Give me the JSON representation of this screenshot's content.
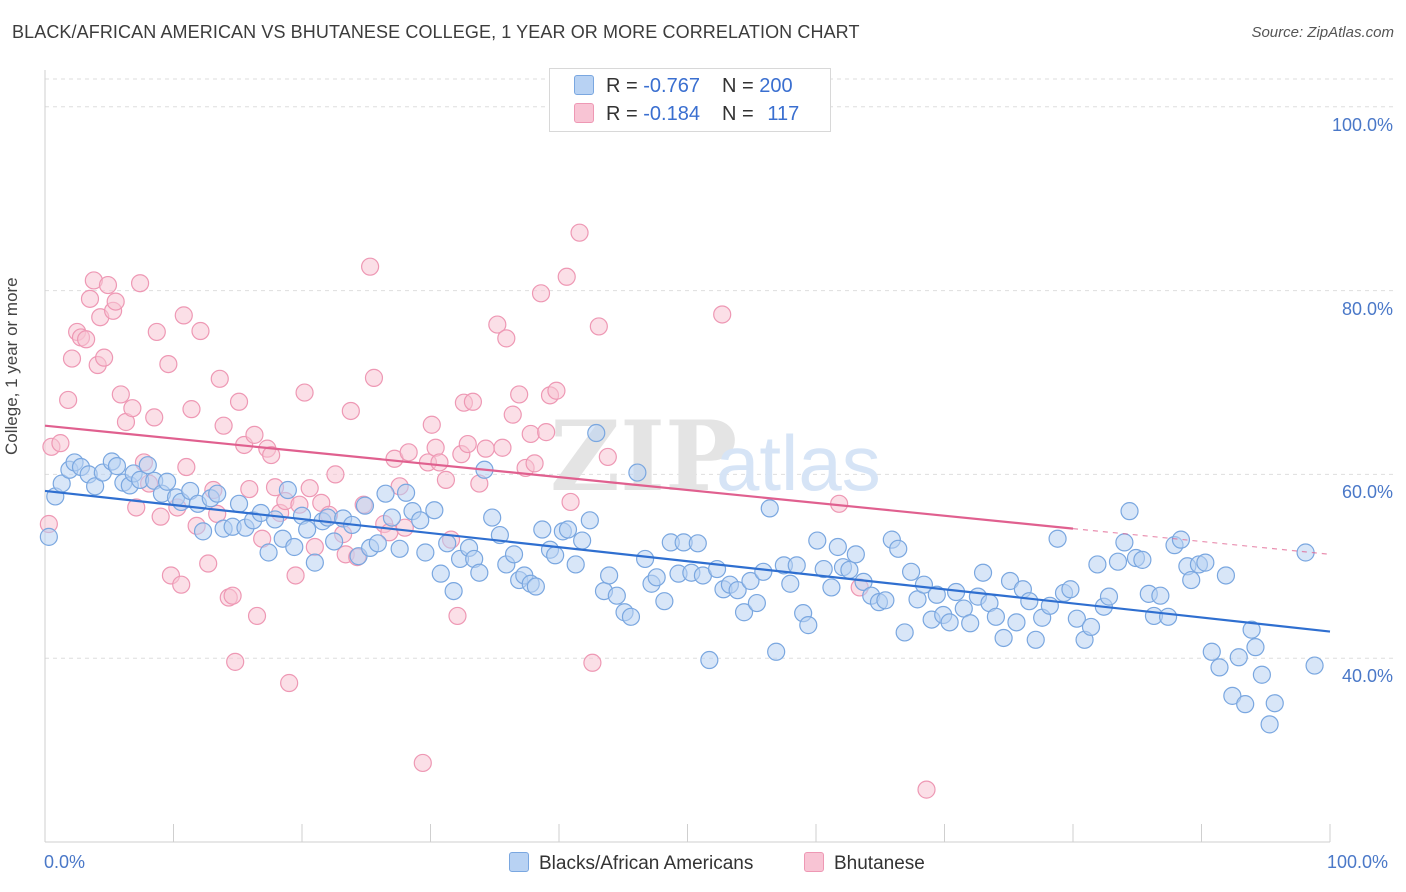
{
  "title": "BLACK/AFRICAN AMERICAN VS BHUTANESE COLLEGE, 1 YEAR OR MORE CORRELATION CHART",
  "source": "Source: ZipAtlas.com",
  "watermark": {
    "zip": "ZIP",
    "atlas": "atlas"
  },
  "legend_top": {
    "rows": [
      {
        "r_label": "R = ",
        "r_value": "-0.767",
        "n_label": "N = ",
        "n_value": "200",
        "color": "#8fb6ea"
      },
      {
        "r_label": "R = ",
        "r_value": "-0.184",
        "n_label": "N = ",
        "n_value": "117",
        "color": "#f4a6bf"
      }
    ]
  },
  "colors": {
    "blue_fill": "#b8d2f3",
    "blue_stroke": "#7aa7e0",
    "blue_line": "#2f6fd0",
    "pink_fill": "#f8c4d4",
    "pink_stroke": "#ee98b4",
    "pink_line": "#e0608f",
    "grid": "#dedede",
    "tick_text": "#4a78c8"
  },
  "chart_data": {
    "type": "scatter",
    "title": "BLACK/AFRICAN AMERICAN VS BHUTANESE COLLEGE, 1 YEAR OR MORE CORRELATION CHART",
    "xlabel": "",
    "ylabel": "College, 1 year or more",
    "xlim": [
      0,
      100
    ],
    "ylim": [
      20,
      104
    ],
    "x_tick_labels": [
      "0.0%",
      "100.0%"
    ],
    "y_ticks": [
      40,
      60,
      80,
      100
    ],
    "y_tick_labels": [
      "40.0%",
      "60.0%",
      "80.0%",
      "100.0%"
    ],
    "grid": true,
    "legend": "top-center",
    "series": [
      {
        "name": "Blacks/African Americans",
        "r": -0.767,
        "n": 200,
        "trend": {
          "x0": 0,
          "y0": 58.2,
          "x1": 100,
          "y1": 42.9
        },
        "points": [
          [
            0.3,
            53.2
          ],
          [
            0.8,
            57.6
          ],
          [
            1.3,
            59.0
          ],
          [
            1.9,
            60.5
          ],
          [
            2.3,
            61.3
          ],
          [
            2.8,
            60.8
          ],
          [
            3.4,
            60.0
          ],
          [
            3.9,
            58.7
          ],
          [
            4.5,
            60.2
          ],
          [
            5.2,
            61.4
          ],
          [
            5.6,
            60.9
          ],
          [
            6.1,
            59.1
          ],
          [
            6.6,
            58.8
          ],
          [
            6.9,
            60.1
          ],
          [
            7.4,
            59.4
          ],
          [
            8.0,
            61.0
          ],
          [
            8.5,
            59.3
          ],
          [
            9.1,
            57.9
          ],
          [
            9.5,
            59.2
          ],
          [
            10.2,
            57.5
          ],
          [
            10.6,
            57.0
          ],
          [
            11.3,
            58.2
          ],
          [
            11.9,
            56.8
          ],
          [
            12.3,
            53.8
          ],
          [
            12.9,
            57.4
          ],
          [
            13.4,
            57.9
          ],
          [
            13.9,
            54.1
          ],
          [
            14.6,
            54.3
          ],
          [
            15.1,
            56.8
          ],
          [
            15.6,
            54.2
          ],
          [
            16.2,
            55.0
          ],
          [
            16.8,
            55.8
          ],
          [
            17.4,
            51.5
          ],
          [
            17.9,
            55.1
          ],
          [
            18.5,
            53.0
          ],
          [
            18.9,
            58.3
          ],
          [
            19.4,
            52.1
          ],
          [
            20.0,
            55.5
          ],
          [
            20.4,
            54.0
          ],
          [
            21.0,
            50.4
          ],
          [
            21.6,
            54.9
          ],
          [
            22.0,
            55.3
          ],
          [
            22.5,
            52.7
          ],
          [
            23.2,
            55.2
          ],
          [
            23.9,
            54.5
          ],
          [
            24.4,
            51.1
          ],
          [
            24.9,
            56.6
          ],
          [
            25.3,
            52.0
          ],
          [
            25.9,
            52.5
          ],
          [
            26.5,
            57.9
          ],
          [
            27.0,
            55.3
          ],
          [
            27.6,
            51.9
          ],
          [
            28.1,
            58.0
          ],
          [
            28.6,
            56.0
          ],
          [
            29.2,
            55.0
          ],
          [
            29.6,
            51.5
          ],
          [
            30.3,
            56.1
          ],
          [
            30.8,
            49.2
          ],
          [
            31.3,
            52.5
          ],
          [
            31.8,
            47.3
          ],
          [
            32.3,
            50.8
          ],
          [
            33.0,
            52.0
          ],
          [
            33.4,
            50.8
          ],
          [
            33.8,
            49.3
          ],
          [
            34.2,
            60.5
          ],
          [
            34.8,
            55.3
          ],
          [
            35.4,
            53.4
          ],
          [
            35.9,
            50.2
          ],
          [
            36.5,
            51.3
          ],
          [
            36.9,
            48.5
          ],
          [
            37.3,
            49.0
          ],
          [
            37.8,
            48.1
          ],
          [
            38.2,
            47.8
          ],
          [
            38.7,
            54.0
          ],
          [
            39.3,
            51.8
          ],
          [
            39.7,
            51.2
          ],
          [
            40.3,
            53.8
          ],
          [
            40.7,
            54.0
          ],
          [
            41.3,
            50.2
          ],
          [
            41.8,
            52.8
          ],
          [
            42.4,
            55.0
          ],
          [
            42.9,
            64.5
          ],
          [
            43.5,
            47.3
          ],
          [
            43.9,
            49.0
          ],
          [
            44.5,
            46.8
          ],
          [
            45.1,
            45.0
          ],
          [
            45.6,
            44.5
          ],
          [
            46.1,
            60.2
          ],
          [
            46.7,
            50.8
          ],
          [
            47.2,
            48.1
          ],
          [
            47.6,
            48.8
          ],
          [
            48.2,
            46.2
          ],
          [
            48.7,
            52.6
          ],
          [
            49.3,
            49.2
          ],
          [
            49.7,
            52.6
          ],
          [
            50.3,
            49.3
          ],
          [
            50.8,
            52.5
          ],
          [
            51.2,
            49.0
          ],
          [
            51.7,
            39.8
          ],
          [
            52.3,
            49.7
          ],
          [
            52.8,
            47.5
          ],
          [
            53.3,
            48.0
          ],
          [
            53.9,
            47.4
          ],
          [
            54.4,
            45.0
          ],
          [
            54.9,
            48.4
          ],
          [
            55.4,
            46.0
          ],
          [
            55.9,
            49.4
          ],
          [
            56.4,
            56.3
          ],
          [
            56.9,
            40.7
          ],
          [
            57.5,
            50.1
          ],
          [
            58.0,
            48.1
          ],
          [
            58.5,
            50.1
          ],
          [
            59.0,
            44.9
          ],
          [
            59.4,
            43.6
          ],
          [
            60.1,
            52.8
          ],
          [
            60.6,
            49.7
          ],
          [
            61.2,
            47.7
          ],
          [
            61.7,
            52.1
          ],
          [
            62.1,
            49.9
          ],
          [
            62.6,
            49.6
          ],
          [
            63.1,
            51.3
          ],
          [
            63.7,
            48.3
          ],
          [
            64.3,
            46.8
          ],
          [
            64.9,
            46.1
          ],
          [
            65.4,
            46.3
          ],
          [
            65.9,
            52.9
          ],
          [
            66.4,
            51.9
          ],
          [
            66.9,
            42.8
          ],
          [
            67.4,
            49.4
          ],
          [
            67.9,
            46.4
          ],
          [
            68.4,
            48.0
          ],
          [
            69.0,
            44.2
          ],
          [
            69.4,
            46.9
          ],
          [
            69.9,
            44.7
          ],
          [
            70.4,
            43.9
          ],
          [
            70.9,
            47.2
          ],
          [
            71.5,
            45.4
          ],
          [
            72.0,
            43.8
          ],
          [
            72.6,
            46.7
          ],
          [
            73.0,
            49.3
          ],
          [
            73.5,
            46.0
          ],
          [
            74.0,
            44.5
          ],
          [
            74.6,
            42.2
          ],
          [
            75.1,
            48.4
          ],
          [
            75.6,
            43.9
          ],
          [
            76.1,
            47.5
          ],
          [
            76.6,
            46.2
          ],
          [
            77.1,
            42.0
          ],
          [
            77.6,
            44.4
          ],
          [
            78.2,
            45.7
          ],
          [
            78.8,
            53.0
          ],
          [
            79.3,
            47.1
          ],
          [
            79.8,
            47.5
          ],
          [
            80.3,
            44.3
          ],
          [
            80.9,
            42.0
          ],
          [
            81.4,
            43.4
          ],
          [
            81.9,
            50.2
          ],
          [
            82.4,
            45.6
          ],
          [
            82.8,
            46.7
          ],
          [
            83.5,
            50.5
          ],
          [
            84.0,
            52.6
          ],
          [
            84.4,
            56.0
          ],
          [
            84.9,
            50.9
          ],
          [
            85.4,
            50.7
          ],
          [
            85.9,
            47.0
          ],
          [
            86.3,
            44.6
          ],
          [
            86.8,
            46.8
          ],
          [
            87.4,
            44.5
          ],
          [
            87.9,
            52.3
          ],
          [
            88.4,
            52.9
          ],
          [
            88.9,
            50.0
          ],
          [
            89.2,
            48.5
          ],
          [
            89.8,
            50.2
          ],
          [
            90.3,
            50.4
          ],
          [
            90.8,
            40.7
          ],
          [
            91.4,
            39.0
          ],
          [
            91.9,
            49.0
          ],
          [
            92.4,
            35.9
          ],
          [
            92.9,
            40.1
          ],
          [
            93.4,
            35.0
          ],
          [
            93.9,
            43.1
          ],
          [
            94.2,
            41.2
          ],
          [
            94.7,
            38.2
          ],
          [
            95.3,
            32.8
          ],
          [
            95.7,
            35.1
          ],
          [
            98.1,
            51.5
          ],
          [
            98.8,
            39.2
          ]
        ]
      },
      {
        "name": "Bhutanese",
        "r": -0.184,
        "n": 117,
        "trend": {
          "x0": 0,
          "y0": 65.3,
          "x1": 80,
          "y1": 54.1
        },
        "trend_dashed": {
          "x0": 80,
          "y0": 54.1,
          "x1": 100,
          "y1": 51.3
        },
        "points": [
          [
            0.3,
            54.6
          ],
          [
            0.5,
            63.0
          ],
          [
            1.2,
            63.4
          ],
          [
            1.8,
            68.1
          ],
          [
            2.1,
            72.6
          ],
          [
            2.5,
            75.5
          ],
          [
            2.8,
            74.9
          ],
          [
            3.2,
            74.7
          ],
          [
            3.5,
            79.1
          ],
          [
            3.8,
            81.1
          ],
          [
            4.1,
            71.9
          ],
          [
            4.3,
            77.1
          ],
          [
            4.6,
            72.7
          ],
          [
            4.9,
            80.6
          ],
          [
            5.3,
            77.8
          ],
          [
            5.5,
            78.8
          ],
          [
            5.9,
            68.7
          ],
          [
            6.3,
            65.7
          ],
          [
            6.8,
            67.2
          ],
          [
            7.1,
            56.4
          ],
          [
            7.4,
            80.8
          ],
          [
            7.7,
            61.3
          ],
          [
            8.1,
            59.0
          ],
          [
            8.5,
            66.2
          ],
          [
            8.7,
            75.5
          ],
          [
            9.0,
            55.4
          ],
          [
            9.6,
            72.0
          ],
          [
            9.8,
            49.0
          ],
          [
            10.3,
            56.4
          ],
          [
            10.6,
            48.0
          ],
          [
            10.8,
            77.3
          ],
          [
            11.0,
            60.8
          ],
          [
            11.4,
            67.1
          ],
          [
            11.8,
            54.4
          ],
          [
            12.1,
            75.6
          ],
          [
            12.7,
            50.3
          ],
          [
            13.1,
            58.3
          ],
          [
            13.4,
            55.7
          ],
          [
            13.6,
            70.4
          ],
          [
            13.9,
            65.3
          ],
          [
            14.3,
            46.6
          ],
          [
            14.6,
            46.8
          ],
          [
            14.8,
            39.6
          ],
          [
            15.1,
            67.9
          ],
          [
            15.5,
            63.2
          ],
          [
            15.9,
            58.4
          ],
          [
            16.3,
            64.3
          ],
          [
            16.5,
            44.6
          ],
          [
            16.9,
            53.0
          ],
          [
            17.3,
            62.8
          ],
          [
            17.6,
            62.1
          ],
          [
            17.9,
            58.6
          ],
          [
            18.3,
            55.8
          ],
          [
            18.7,
            57.1
          ],
          [
            19.0,
            37.3
          ],
          [
            19.5,
            49.0
          ],
          [
            19.8,
            56.7
          ],
          [
            20.2,
            68.9
          ],
          [
            20.6,
            58.5
          ],
          [
            21.0,
            52.1
          ],
          [
            21.5,
            56.9
          ],
          [
            22.1,
            55.6
          ],
          [
            22.6,
            60.0
          ],
          [
            23.2,
            53.5
          ],
          [
            23.4,
            51.3
          ],
          [
            23.8,
            66.9
          ],
          [
            24.3,
            51.0
          ],
          [
            24.8,
            56.7
          ],
          [
            25.3,
            82.6
          ],
          [
            25.6,
            70.5
          ],
          [
            26.4,
            54.6
          ],
          [
            26.8,
            53.7
          ],
          [
            27.2,
            61.7
          ],
          [
            27.6,
            58.7
          ],
          [
            28.0,
            54.2
          ],
          [
            28.3,
            62.4
          ],
          [
            29.4,
            28.6
          ],
          [
            29.8,
            61.3
          ],
          [
            30.1,
            65.4
          ],
          [
            30.4,
            62.9
          ],
          [
            30.7,
            61.3
          ],
          [
            31.2,
            59.4
          ],
          [
            31.6,
            52.9
          ],
          [
            32.1,
            44.6
          ],
          [
            32.4,
            62.2
          ],
          [
            32.6,
            67.8
          ],
          [
            32.9,
            63.3
          ],
          [
            33.3,
            67.9
          ],
          [
            33.8,
            59.0
          ],
          [
            34.3,
            62.8
          ],
          [
            35.2,
            76.3
          ],
          [
            35.6,
            62.9
          ],
          [
            35.9,
            74.8
          ],
          [
            36.4,
            66.5
          ],
          [
            36.9,
            68.7
          ],
          [
            37.4,
            60.7
          ],
          [
            37.8,
            64.4
          ],
          [
            38.1,
            61.2
          ],
          [
            38.6,
            79.7
          ],
          [
            39.0,
            64.6
          ],
          [
            39.3,
            68.6
          ],
          [
            39.8,
            69.1
          ],
          [
            40.6,
            81.5
          ],
          [
            40.9,
            57.0
          ],
          [
            41.6,
            86.3
          ],
          [
            42.6,
            39.5
          ],
          [
            43.1,
            76.1
          ],
          [
            43.8,
            61.9
          ],
          [
            52.7,
            77.4
          ],
          [
            61.8,
            56.8
          ],
          [
            63.4,
            47.7
          ],
          [
            68.6,
            25.7
          ]
        ]
      }
    ]
  },
  "bottom_legend": [
    {
      "label": "Blacks/African Americans",
      "color": "#b8d2f3"
    },
    {
      "label": "Bhutanese",
      "color": "#f8c4d4"
    }
  ]
}
